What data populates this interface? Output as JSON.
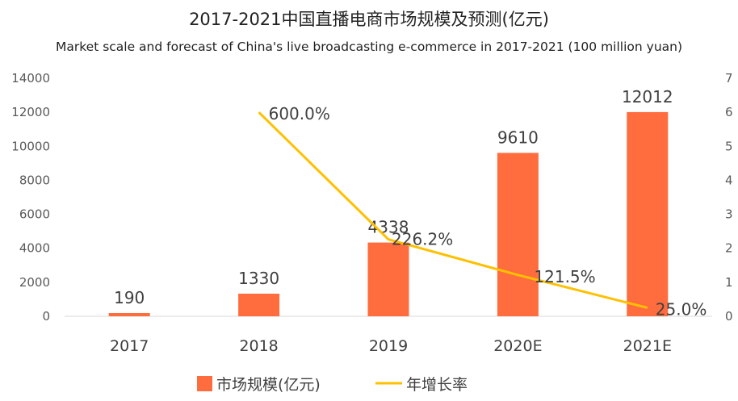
{
  "chart_data": {
    "type": "bar",
    "title": "2017-2021中国直播电商市场规模及预测(亿元)",
    "subtitle": "Market scale and forecast of China's live broadcasting e-commerce in 2017-2021 (100 million yuan)",
    "categories": [
      "2017",
      "2018",
      "2019",
      "2020E",
      "2021E"
    ],
    "series": [
      {
        "name": "市场规模(亿元)",
        "type": "bar",
        "axis": "left",
        "color": "#ff6d3f",
        "values": [
          190,
          1330,
          4338,
          9610,
          12012
        ],
        "labels": [
          "190",
          "1330",
          "4338",
          "9610",
          "12012"
        ]
      },
      {
        "name": "年增长率",
        "type": "line",
        "axis": "right",
        "color": "#ffc000",
        "values": [
          null,
          6.0,
          2.262,
          1.215,
          0.25
        ],
        "labels": [
          "",
          "600.0%",
          "226.2%",
          "121.5%",
          "25.0%"
        ]
      }
    ],
    "ylim": [
      0,
      14000
    ],
    "yticks": [
      "0",
      "2000",
      "4000",
      "6000",
      "8000",
      "10000",
      "12000",
      "14000"
    ],
    "y2lim": [
      0,
      7
    ],
    "y2ticks": [
      "0",
      "1",
      "2",
      "3",
      "4",
      "5",
      "6",
      "7"
    ],
    "grid": false,
    "legend_position": "bottom-center"
  }
}
